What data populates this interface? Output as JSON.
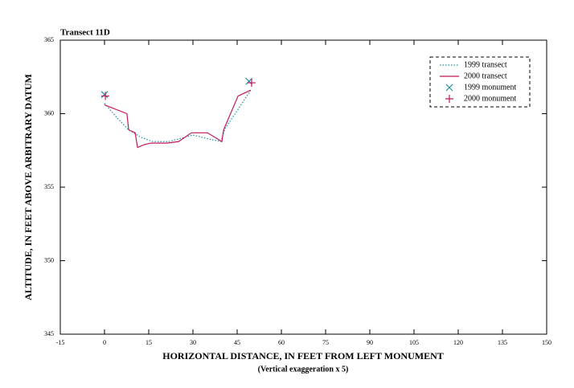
{
  "chart_data": {
    "type": "line",
    "title": "Transect 11D",
    "x_label": "HORIZONTAL DISTANCE, IN FEET FROM LEFT MONUMENT",
    "x_sublabel": "(Vertical exaggeration x 5)",
    "y_label": "ALTITUDE, IN FEET ABOVE ARBITRARY DATUM",
    "xlim": [
      -15,
      150
    ],
    "xticks": [
      -15,
      0,
      15,
      30,
      45,
      60,
      75,
      90,
      105,
      120,
      135,
      150
    ],
    "ylim": [
      345,
      365
    ],
    "yticks": [
      345,
      350,
      355,
      360,
      365
    ],
    "legend": "upper right",
    "series": [
      {
        "name": "1999 transect",
        "color": "#1a8fa0",
        "style": "dotted",
        "x": [
          0,
          4.1,
          8.2,
          12.3,
          16.4,
          21.8,
          27.3,
          30,
          34.9,
          39.5,
          40.9,
          45,
          49.6
        ],
        "values": [
          360.7,
          359.75,
          358.9,
          358.4,
          358.1,
          358.1,
          358.4,
          358.55,
          358.3,
          358.1,
          359,
          360.2,
          361.6
        ]
      },
      {
        "name": "2000 transect",
        "color": "#c0185a",
        "style": "solid",
        "x": [
          0,
          7.6,
          8.2,
          10.4,
          11.2,
          13.6,
          15.8,
          21.3,
          25.1,
          29.5,
          34.9,
          38.2,
          39.8,
          40.4,
          45.3,
          49.6
        ],
        "values": [
          360.6,
          360,
          358.9,
          358.7,
          357.7,
          357.9,
          358,
          358,
          358.1,
          358.7,
          358.7,
          358.3,
          358.1,
          358.9,
          361.2,
          361.6
        ]
      },
      {
        "name": "1999 monument",
        "color": "#1a8fa0",
        "style": "x",
        "x": [
          0,
          49
        ],
        "values": [
          361.3,
          362.2
        ]
      },
      {
        "name": "2000 monument",
        "color": "#c0185a",
        "style": "plus",
        "x": [
          0.3,
          49.9
        ],
        "values": [
          361.2,
          362.1
        ]
      }
    ]
  }
}
